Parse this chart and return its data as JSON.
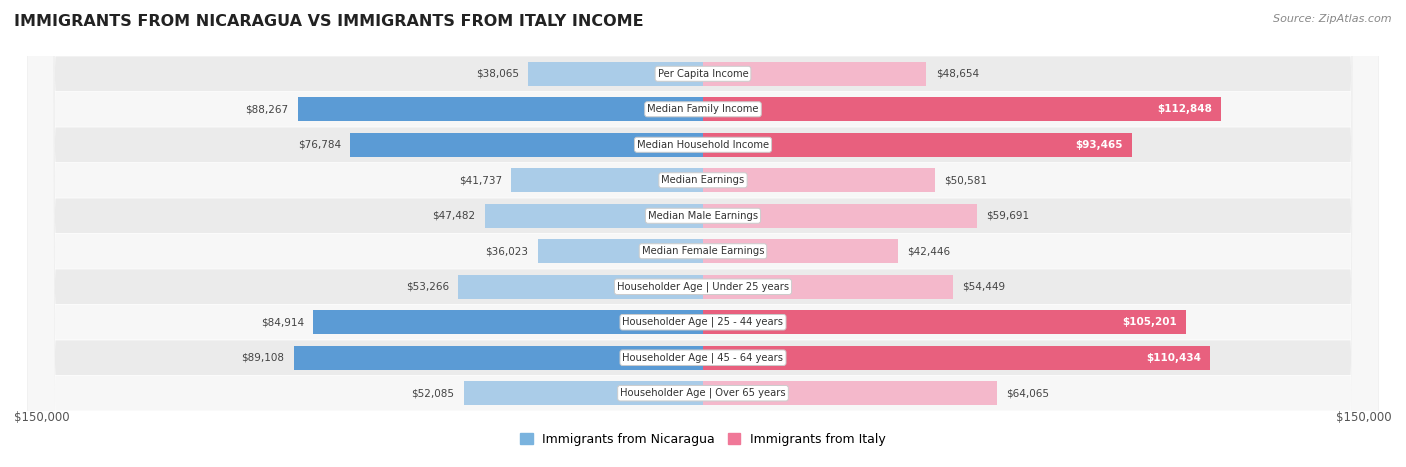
{
  "title": "IMMIGRANTS FROM NICARAGUA VS IMMIGRANTS FROM ITALY INCOME",
  "source": "Source: ZipAtlas.com",
  "categories": [
    "Per Capita Income",
    "Median Family Income",
    "Median Household Income",
    "Median Earnings",
    "Median Male Earnings",
    "Median Female Earnings",
    "Householder Age | Under 25 years",
    "Householder Age | 25 - 44 years",
    "Householder Age | 45 - 64 years",
    "Householder Age | Over 65 years"
  ],
  "nicaragua_values": [
    38065,
    88267,
    76784,
    41737,
    47482,
    36023,
    53266,
    84914,
    89108,
    52085
  ],
  "italy_values": [
    48654,
    112848,
    93465,
    50581,
    59691,
    42446,
    54449,
    105201,
    110434,
    64065
  ],
  "nicaragua_color_light": "#aacce8",
  "nicaragua_color_dark": "#5b9bd5",
  "italy_color_light": "#f4b8cb",
  "italy_color_dark": "#e8607e",
  "row_bg_color_odd": "#ebebeb",
  "row_bg_color_even": "#f7f7f7",
  "max_value": 150000,
  "threshold": 65000,
  "legend_nicaragua": "Immigrants from Nicaragua",
  "legend_italy": "Immigrants from Italy",
  "legend_nic_color": "#7ab3de",
  "legend_italy_color": "#f07898",
  "axis_label": "$150,000"
}
